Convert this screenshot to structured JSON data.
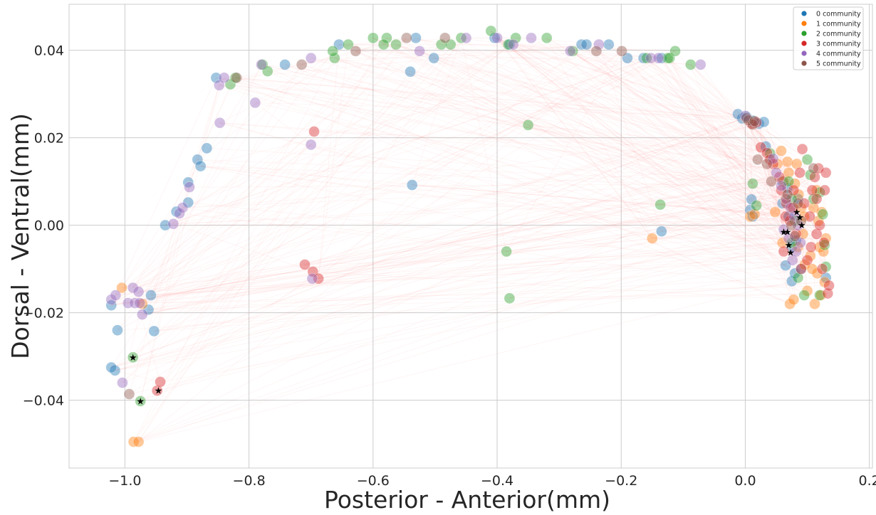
{
  "chart_data": {
    "type": "scatter",
    "title": "",
    "xlabel": "Posterior - Anterior(mm)",
    "ylabel": "Dorsal - Ventral(mm)",
    "xlim": [
      -1.09,
      0.205
    ],
    "ylim": [
      -0.0555,
      0.0505
    ],
    "xticks": [
      -1.0,
      -0.8,
      -0.6,
      -0.4,
      -0.2,
      0.0,
      0.2
    ],
    "xtick_labels": [
      "−1.0",
      "−0.8",
      "−0.6",
      "−0.4",
      "−0.2",
      "0.0",
      "0.2"
    ],
    "yticks": [
      -0.04,
      -0.02,
      0.0,
      0.02,
      0.04
    ],
    "ytick_labels": [
      "−0.04",
      "−0.02",
      "0.00",
      "0.02",
      "0.04"
    ],
    "grid": true,
    "legend_position": "top-right",
    "connection_color": "#ff6b6b",
    "star_marker_color": "#000000",
    "series": [
      {
        "name": "0 community",
        "color": "#1f77b4",
        "points": [
          [
            -1.022,
            -0.0183
          ],
          [
            -1.016,
            -0.0332
          ],
          [
            -1.012,
            -0.024
          ],
          [
            -1.022,
            -0.0325
          ],
          [
            -0.958,
            -0.016
          ],
          [
            -0.962,
            -0.0193
          ],
          [
            -0.953,
            -0.0242
          ],
          [
            -0.935,
            0.0
          ],
          [
            -0.917,
            0.0031
          ],
          [
            -0.898,
            0.0052
          ],
          [
            -0.898,
            0.0098
          ],
          [
            -0.883,
            0.015
          ],
          [
            -0.878,
            0.0135
          ],
          [
            -0.868,
            0.0176
          ],
          [
            -0.853,
            0.0337
          ],
          [
            -0.742,
            0.0367
          ],
          [
            -0.655,
            0.0413
          ],
          [
            -0.54,
            0.0351
          ],
          [
            -0.537,
            0.0092
          ],
          [
            -0.531,
            0.0428
          ],
          [
            -0.502,
            0.0382
          ],
          [
            -0.404,
            0.0428
          ],
          [
            -0.38,
            0.0413
          ],
          [
            -0.264,
            0.0413
          ],
          [
            -0.256,
            0.0413
          ],
          [
            -0.22,
            0.0413
          ],
          [
            -0.19,
            0.0382
          ],
          [
            -0.164,
            0.0382
          ],
          [
            -0.135,
            0.0382
          ],
          [
            -0.135,
            -0.0014
          ],
          [
            -0.005,
            0.0244
          ],
          [
            -0.012,
            0.0254
          ],
          [
            0.002,
            0.0248
          ],
          [
            0.012,
            0.0239
          ],
          [
            0.022,
            0.0232
          ],
          [
            0.03,
            0.0236
          ],
          [
            0.033,
            0.018
          ],
          [
            0.01,
            0.0059
          ],
          [
            0.008,
            0.0035
          ],
          [
            0.012,
            0.002
          ],
          [
            0.06,
            0.01
          ],
          [
            0.065,
            -0.0092
          ],
          [
            0.075,
            -0.0128
          ],
          [
            0.08,
            -0.011
          ],
          [
            0.07,
            0.002
          ],
          [
            0.085,
            0.006
          ],
          [
            0.09,
            -0.01
          ],
          [
            0.13,
            -0.012
          ],
          [
            0.06,
            0.005
          ],
          [
            0.075,
            -0.005
          ],
          [
            0.068,
            0.0085
          ],
          [
            0.082,
            -0.0035
          ]
        ]
      },
      {
        "name": "1 community",
        "color": "#ff7f0e",
        "points": [
          [
            -1.005,
            -0.0143
          ],
          [
            -0.972,
            -0.018
          ],
          [
            -0.986,
            -0.0495
          ],
          [
            -0.978,
            -0.0495
          ],
          [
            -0.15,
            -0.003
          ],
          [
            0.008,
            0.002
          ],
          [
            0.015,
            0.0025
          ],
          [
            0.048,
            0.003
          ],
          [
            0.052,
            0.014
          ],
          [
            0.058,
            0.017
          ],
          [
            0.062,
            0.01
          ],
          [
            0.065,
            0.006
          ],
          [
            0.068,
            0.0145
          ],
          [
            0.07,
            0.012
          ],
          [
            0.072,
            -0.018
          ],
          [
            0.078,
            -0.017
          ],
          [
            0.08,
            0.0095
          ],
          [
            0.083,
            0.014
          ],
          [
            0.086,
            0.007
          ],
          [
            0.09,
            0.004
          ],
          [
            0.093,
            -0.002
          ],
          [
            0.096,
            -0.009
          ],
          [
            0.1,
            -0.015
          ],
          [
            0.105,
            -0.007
          ],
          [
            0.11,
            0.004
          ],
          [
            0.112,
            -0.018
          ],
          [
            0.116,
            -0.011
          ],
          [
            0.118,
            0.001
          ],
          [
            0.12,
            -0.005
          ],
          [
            0.123,
            0.003
          ],
          [
            0.126,
            -0.006
          ],
          [
            0.128,
            -0.013
          ],
          [
            0.13,
            -0.003
          ],
          [
            0.06,
            -0.004
          ],
          [
            0.085,
            -0.005
          ],
          [
            0.075,
            0.004
          ],
          [
            0.095,
            0.002
          ],
          [
            0.108,
            -0.01
          ],
          [
            0.115,
            0.008
          ],
          [
            0.122,
            -0.016
          ]
        ]
      },
      {
        "name": "2 community",
        "color": "#2ca02c",
        "points": [
          [
            -0.987,
            -0.0302
          ],
          [
            -0.975,
            -0.0402
          ],
          [
            -0.83,
            0.0322
          ],
          [
            -0.822,
            0.0337
          ],
          [
            -0.778,
            0.0367
          ],
          [
            -0.77,
            0.0352
          ],
          [
            -0.662,
            0.0382
          ],
          [
            -0.665,
            0.0398
          ],
          [
            -0.64,
            0.0413
          ],
          [
            -0.6,
            0.0428
          ],
          [
            -0.578,
            0.0428
          ],
          [
            -0.583,
            0.0413
          ],
          [
            -0.563,
            0.0413
          ],
          [
            -0.49,
            0.0413
          ],
          [
            -0.475,
            0.0413
          ],
          [
            -0.458,
            0.0428
          ],
          [
            -0.41,
            0.0444
          ],
          [
            -0.382,
            0.0413
          ],
          [
            -0.37,
            0.0428
          ],
          [
            -0.32,
            0.0428
          ],
          [
            -0.278,
            0.0398
          ],
          [
            -0.35,
            0.0229
          ],
          [
            -0.385,
            -0.006
          ],
          [
            -0.38,
            -0.0167
          ],
          [
            -0.137,
            0.0047
          ],
          [
            -0.159,
            0.0382
          ],
          [
            -0.125,
            0.0382
          ],
          [
            -0.122,
            0.0382
          ],
          [
            -0.113,
            0.0398
          ],
          [
            -0.088,
            0.0367
          ],
          [
            0.04,
            0.0164
          ],
          [
            0.012,
            0.0095
          ],
          [
            0.018,
            0.0045
          ],
          [
            0.07,
            0.01
          ],
          [
            0.075,
            0.006
          ],
          [
            0.1,
            0.015
          ],
          [
            0.105,
            0.0115
          ],
          [
            0.12,
            0.0075
          ],
          [
            0.125,
            0.0025
          ],
          [
            0.128,
            -0.0045
          ],
          [
            0.13,
            -0.0095
          ],
          [
            0.12,
            -0.016
          ],
          [
            0.095,
            -0.016
          ],
          [
            0.085,
            -0.012
          ],
          [
            0.075,
            -0.004
          ],
          [
            0.08,
            0.001
          ],
          [
            0.11,
            0.006
          ]
        ]
      },
      {
        "name": "3 community",
        "color": "#d62728",
        "points": [
          [
            -0.948,
            -0.0378
          ],
          [
            -0.943,
            -0.0358
          ],
          [
            -0.71,
            -0.009
          ],
          [
            -0.697,
            -0.0106
          ],
          [
            -0.688,
            -0.0122
          ],
          [
            -0.695,
            0.0214
          ],
          [
            0.01,
            0.0232
          ],
          [
            0.018,
            0.0235
          ],
          [
            0.025,
            0.0178
          ],
          [
            0.035,
            0.0165
          ],
          [
            0.04,
            0.015
          ],
          [
            0.055,
            0.011
          ],
          [
            0.062,
            -0.006
          ],
          [
            0.066,
            0.005
          ],
          [
            0.072,
            0.001
          ],
          [
            0.078,
            0.008
          ],
          [
            0.082,
            -0.002
          ],
          [
            0.088,
            0.012
          ],
          [
            0.092,
            0.0174
          ],
          [
            0.095,
            0.005
          ],
          [
            0.1,
            -0.008
          ],
          [
            0.104,
            0.002
          ],
          [
            0.108,
            0.008
          ],
          [
            0.112,
            0.011
          ],
          [
            0.115,
            -0.002
          ],
          [
            0.118,
            0.013
          ],
          [
            0.12,
            0.0
          ],
          [
            0.124,
            -0.01
          ],
          [
            0.127,
            -0.004
          ],
          [
            0.13,
            0.012
          ],
          [
            0.133,
            -0.0156
          ],
          [
            0.135,
            -0.0138
          ],
          [
            0.128,
            0.008
          ],
          [
            0.115,
            0.006
          ],
          [
            0.106,
            -0.005
          ],
          [
            0.09,
            -0.01
          ],
          [
            0.077,
            0.004
          ],
          [
            0.065,
            0.002
          ],
          [
            0.058,
            0.008
          ],
          [
            0.045,
            0.014
          ]
        ]
      },
      {
        "name": "4 community",
        "color": "#9467bd",
        "points": [
          [
            -1.022,
            -0.017
          ],
          [
            -1.015,
            -0.016
          ],
          [
            -1.004,
            -0.036
          ],
          [
            -0.995,
            -0.0178
          ],
          [
            -0.987,
            -0.0143
          ],
          [
            -0.984,
            -0.0178
          ],
          [
            -0.978,
            -0.0152
          ],
          [
            -0.976,
            -0.0178
          ],
          [
            -0.972,
            -0.0204
          ],
          [
            -0.922,
            0.0003
          ],
          [
            -0.912,
            0.0027
          ],
          [
            -0.907,
            0.004
          ],
          [
            -0.896,
            0.0087
          ],
          [
            -0.848,
            0.032
          ],
          [
            -0.84,
            0.0337
          ],
          [
            -0.847,
            0.0234
          ],
          [
            -0.79,
            0.028
          ],
          [
            -0.78,
            0.0367
          ],
          [
            -0.7,
            0.0184
          ],
          [
            -0.698,
            -0.0122
          ],
          [
            -0.7,
            0.0382
          ],
          [
            -0.525,
            0.0398
          ],
          [
            -0.45,
            0.0428
          ],
          [
            -0.4,
            0.0428
          ],
          [
            -0.374,
            0.0413
          ],
          [
            -0.345,
            0.0428
          ],
          [
            -0.282,
            0.0398
          ],
          [
            -0.236,
            0.0413
          ],
          [
            -0.152,
            0.0382
          ],
          [
            -0.14,
            0.0382
          ],
          [
            -0.072,
            0.0367
          ],
          [
            0.0,
            0.025
          ],
          [
            0.045,
            0.0152
          ],
          [
            0.05,
            0.012
          ],
          [
            0.058,
            0.009
          ],
          [
            0.062,
            -0.001
          ],
          [
            0.066,
            0.006
          ],
          [
            0.07,
            -0.003
          ],
          [
            0.073,
            0.004
          ],
          [
            0.076,
            -0.008
          ],
          [
            0.079,
            0.002
          ],
          [
            0.082,
            -0.006
          ],
          [
            0.085,
            0.0
          ],
          [
            0.089,
            -0.004
          ]
        ]
      },
      {
        "name": "5 community",
        "color": "#8c564b",
        "points": [
          [
            -0.993,
            -0.0386
          ],
          [
            -0.82,
            0.0337
          ],
          [
            -0.715,
            0.0367
          ],
          [
            -0.628,
            0.0398
          ],
          [
            -0.546,
            0.0428
          ],
          [
            -0.484,
            0.0428
          ],
          [
            -0.24,
            0.0398
          ],
          [
            -0.199,
            0.0398
          ],
          [
            0.002,
            0.0245
          ],
          [
            0.005,
            0.024
          ],
          [
            0.012,
            0.023
          ],
          [
            0.015,
            0.0238
          ],
          [
            0.02,
            0.015
          ],
          [
            0.035,
            0.014
          ],
          [
            0.042,
            0.01
          ],
          [
            0.068,
            0.007
          ],
          [
            0.074,
            0.0
          ],
          [
            0.08,
            -0.0025
          ],
          [
            0.11,
            0.013
          ],
          [
            0.085,
            0.005
          ],
          [
            0.09,
            0.001
          ]
        ]
      }
    ],
    "star_points": [
      [
        -0.987,
        -0.0302
      ],
      [
        -0.946,
        -0.0378
      ],
      [
        -0.975,
        -0.0402
      ],
      [
        0.083,
        0.003
      ],
      [
        0.088,
        0.0018
      ],
      [
        0.091,
        0.0
      ],
      [
        0.062,
        -0.0015
      ],
      [
        0.068,
        -0.0015
      ],
      [
        0.07,
        -0.0045
      ],
      [
        0.073,
        -0.0062
      ]
    ]
  }
}
